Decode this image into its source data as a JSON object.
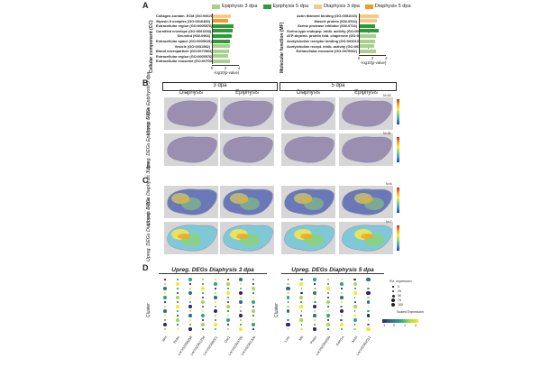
{
  "figure": {
    "panel_labels": [
      "A",
      "B",
      "C",
      "D"
    ]
  },
  "legend": [
    {
      "label": "Epiphysis 3 dpa",
      "color": "#a9d18e"
    },
    {
      "label": "Epiphysis 5 dpa",
      "color": "#2e9a3a"
    },
    {
      "label": "Diaphysis 3 dpa",
      "color": "#f6c98a"
    },
    {
      "label": "Diaphysis 5 dpa",
      "color": "#f29a25"
    }
  ],
  "chart_data": [
    {
      "type": "bar",
      "orientation": "horizontal",
      "title": "Cellular component (CC)",
      "ylabel": "Cellular component (CC)",
      "xlabel": "-log10(p-value)",
      "xlim": [
        0,
        4
      ],
      "xticks": [
        "0",
        "2",
        "4"
      ],
      "categories": [
        "Collagen-contain. ECM (GO:0062023)",
        "Myosin II complex (GO:0016460)",
        "Extracellular region (GO:0005576)",
        "Cornified envelope (GO:0001533)",
        "Secreted (KW-0964)",
        "Extracellular space (GO:0005615)",
        "Vesicle (GO:0031982)",
        "Blood microparticle (GO:0072562)",
        "Extracellular region (GO:0005576)",
        "Extracellular exosome (GO:0070062)"
      ],
      "series": [
        {
          "name": "Diaphysis 3 dpa",
          "values": [
            2.8,
            0,
            0,
            0,
            0,
            0,
            0,
            0,
            0,
            0
          ]
        },
        {
          "name": "Diaphysis 5 dpa",
          "values": [
            0,
            2.4,
            0,
            0,
            0,
            0,
            0,
            0,
            0,
            0
          ]
        },
        {
          "name": "Epiphysis 5 dpa",
          "values": [
            0,
            0,
            3.2,
            3.0,
            2.9,
            2.7,
            0,
            0,
            0,
            0
          ]
        },
        {
          "name": "Epiphysis 3 dpa",
          "values": [
            0,
            0,
            0,
            0,
            0,
            0,
            2.6,
            2.5,
            2.4,
            2.6
          ]
        }
      ]
    },
    {
      "type": "bar",
      "orientation": "horizontal",
      "title": "Molecular function (MF)",
      "ylabel": "Molecular function (MF)",
      "xlabel": "-log10(p-value)",
      "xlim": [
        0,
        4
      ],
      "xticks": [
        "0",
        "2",
        "4"
      ],
      "categories": [
        "Actin filament binding (GO:0051015)",
        "Muscle protein (KW-0514)",
        "Serine protease inhibitor (KW-0722)",
        "Serine-type endopep. inhib. activity (GO:0004867)",
        "ATP-depend. protein fold. chaperone (GO:0140662)",
        "Acetylcholine receptor binding (GO:0033130)",
        "Acetylcholine recept. inhib. activity (GO:0030550)",
        "Extracellular exosome (GO:0070062)"
      ],
      "series": [
        {
          "name": "Diaphysis 3 dpa",
          "values": [
            2.9,
            2.6,
            0,
            0,
            0,
            0,
            0,
            0
          ]
        },
        {
          "name": "Epiphysis 5 dpa",
          "values": [
            0,
            0,
            2.4,
            2.9,
            0,
            0,
            0,
            0
          ]
        },
        {
          "name": "Epiphysis 3 dpa",
          "values": [
            0,
            0,
            0,
            0,
            2.5,
            2.4,
            2.3,
            2.5
          ]
        }
      ]
    }
  ],
  "panel_b": {
    "groups": [
      "3 dpa",
      "5 dpa"
    ],
    "columns": [
      "Diaphysis",
      "Epiphysis",
      "Diaphysis",
      "Epiphysis"
    ],
    "rows": [
      "Epiphysis 3 dpa",
      "Epiphysis 5 dpa"
    ],
    "row_prefix": "Upreg. DEGs",
    "scale_labels": [
      "N=43",
      "N=36"
    ]
  },
  "panel_c": {
    "rows": [
      "Diaphysis 3 dpa",
      "Diaphysis 5 dpa"
    ],
    "row_prefix": "Upreg. DEGs",
    "scale_labels": [
      "N=6",
      "N=7"
    ]
  },
  "panel_d": {
    "left_title": "Upreg. DEGs Diaphysis 3 dpa",
    "right_title": "Upreg. DEGs Diaphysis 5 dpa",
    "ylabel": "Cluster",
    "left_genes": [
      "Wnt",
      "Prdm",
      "Loc102358258",
      "Loc102361234",
      "Loc102368021",
      "Osr2",
      "Loc102363790",
      "Loc102361306"
    ],
    "right_genes": [
      "Lum",
      "Mit",
      "Postn",
      "Loc102354036",
      "Kdm1a",
      "Nebl",
      "Loc102362012"
    ],
    "size_legend_title": "Pct. expression",
    "size_legend": [
      "0",
      "25",
      "50",
      "75",
      "100"
    ],
    "color_legend_title": "Scaled Expression",
    "color_legend_ticks": [
      "-1",
      "0",
      "1",
      "2"
    ]
  }
}
